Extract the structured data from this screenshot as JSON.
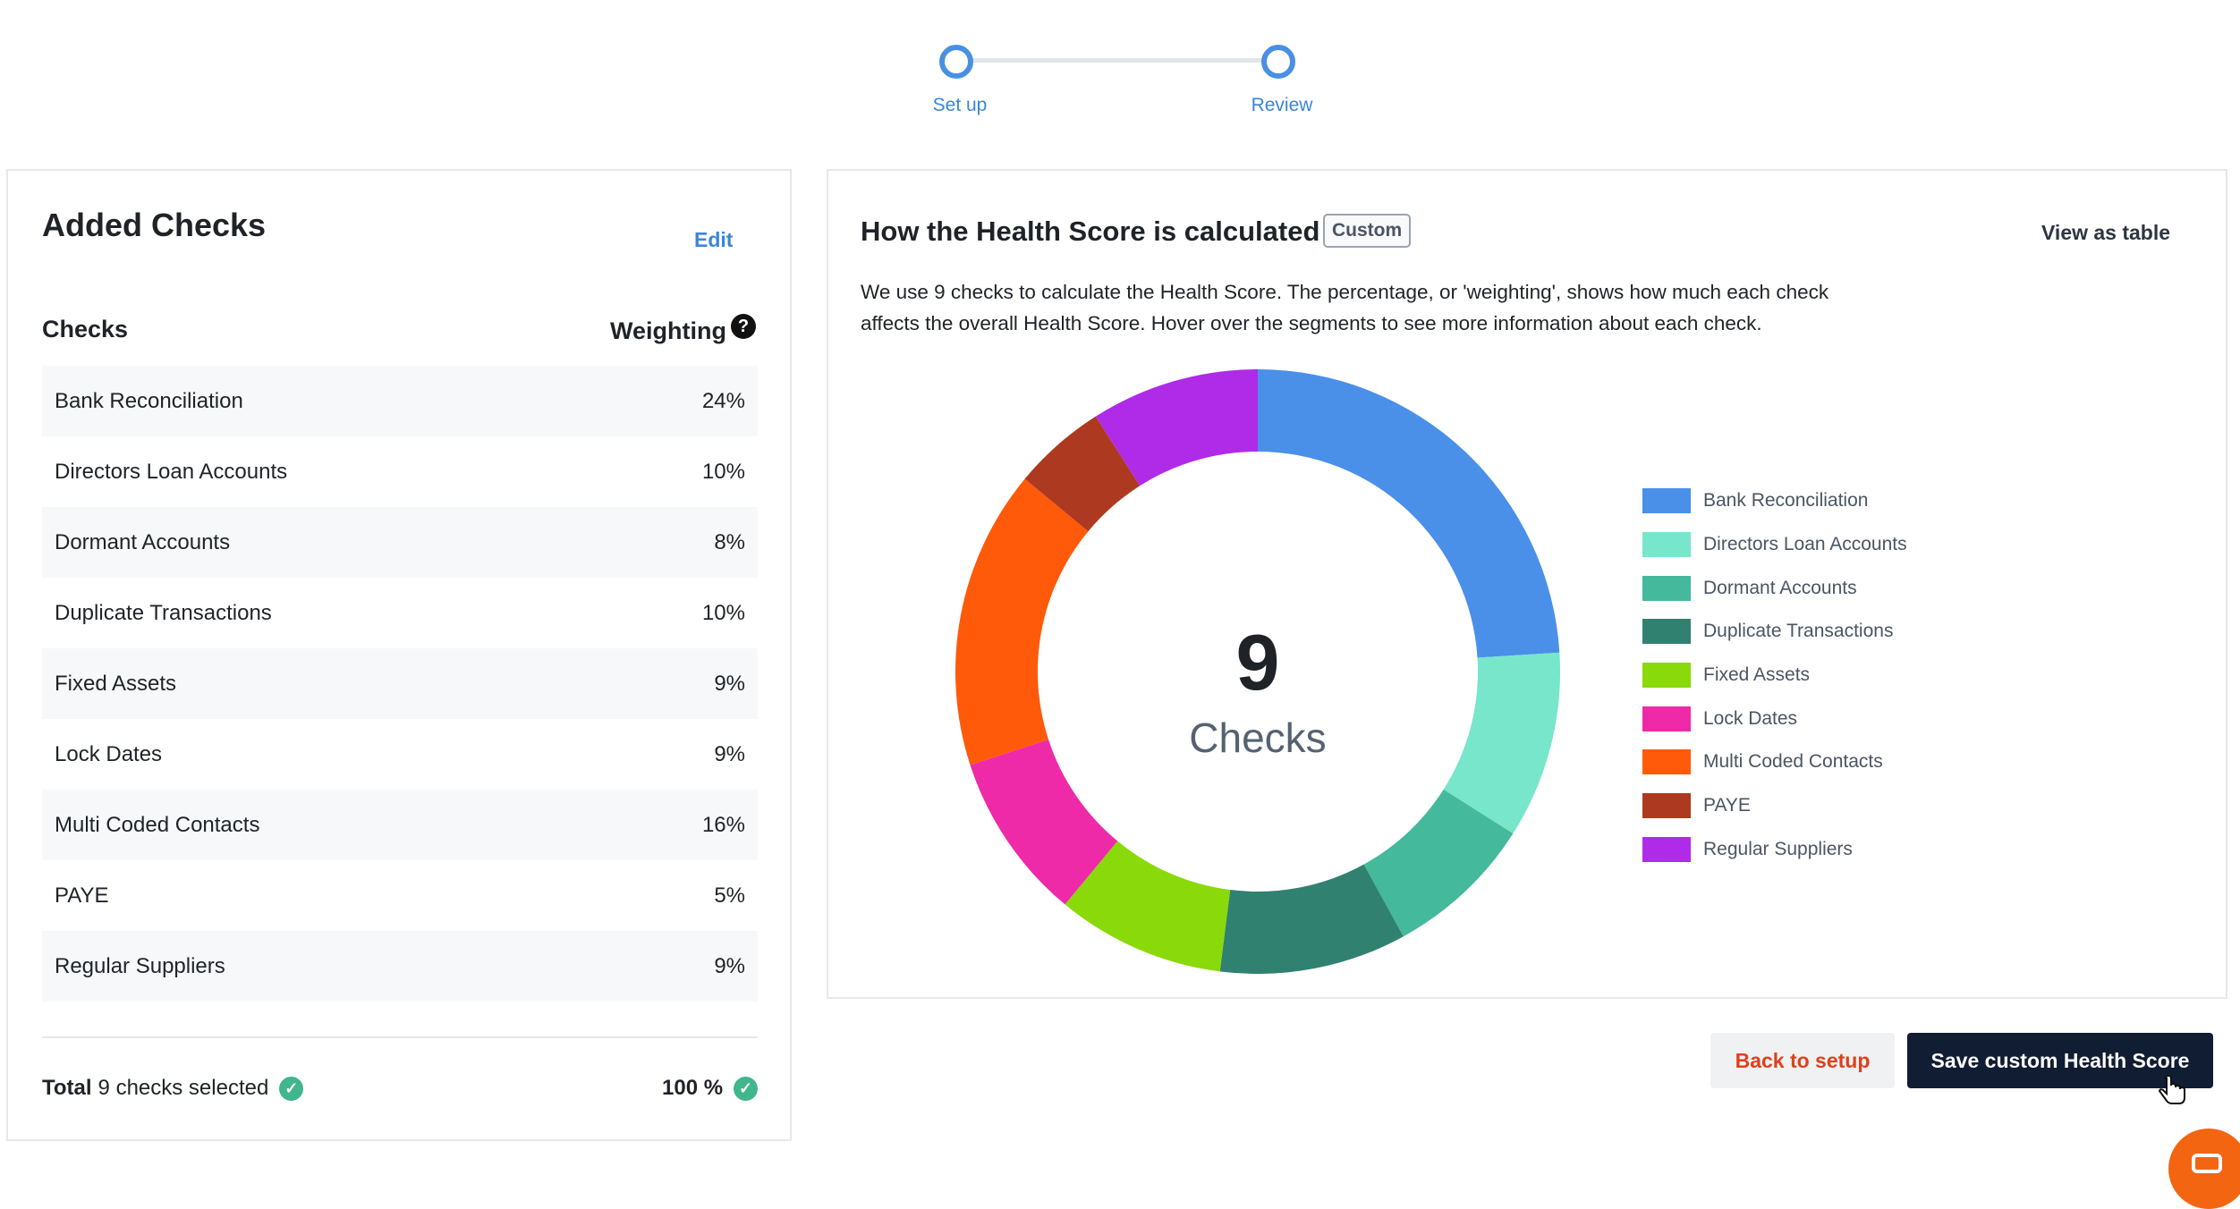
{
  "stepper": {
    "steps": [
      {
        "label": "Set up"
      },
      {
        "label": "Review"
      }
    ]
  },
  "left_panel": {
    "title": "Added Checks",
    "edit_label": "Edit",
    "col_checks": "Checks",
    "col_weighting": "Weighting",
    "help_icon": "question-circle-icon",
    "checks": [
      {
        "name": "Bank Reconciliation",
        "weight": "24%"
      },
      {
        "name": "Directors Loan Accounts",
        "weight": "10%"
      },
      {
        "name": "Dormant Accounts",
        "weight": "8%"
      },
      {
        "name": "Duplicate Transactions",
        "weight": "10%"
      },
      {
        "name": "Fixed Assets",
        "weight": "9%"
      },
      {
        "name": "Lock Dates",
        "weight": "9%"
      },
      {
        "name": "Multi Coded Contacts",
        "weight": "16%"
      },
      {
        "name": "PAYE",
        "weight": "5%"
      },
      {
        "name": "Regular Suppliers",
        "weight": "9%"
      }
    ],
    "total_label": "Total",
    "total_text": "9 checks selected",
    "total_percent": "100 %"
  },
  "right_panel": {
    "title": "How the Health Score is calculated",
    "badge": "Custom",
    "view_table": "View as table",
    "description": "We use 9 checks to calculate the Health Score. The percentage, or 'weighting', shows how much each check affects the overall Health Score. Hover over the segments to see more information about each check.",
    "center_number": "9",
    "center_label": "Checks"
  },
  "chart_data": {
    "type": "pie",
    "donut": true,
    "categories": [
      "Bank Reconciliation",
      "Directors Loan Accounts",
      "Dormant Accounts",
      "Duplicate Transactions",
      "Fixed Assets",
      "Lock Dates",
      "Multi Coded Contacts",
      "PAYE",
      "Regular Suppliers"
    ],
    "values": [
      24,
      10,
      8,
      10,
      9,
      9,
      16,
      5,
      9
    ],
    "colors": [
      "#4a90e8",
      "#78e6cb",
      "#44b99c",
      "#318170",
      "#8ad90a",
      "#ee2aa8",
      "#ff5a0a",
      "#ad3a20",
      "#b02be8"
    ],
    "legend_position": "right"
  },
  "buttons": {
    "back": "Back to setup",
    "save": "Save custom Health Score"
  },
  "colors": {
    "accent": "#4a90e2",
    "primary_button": "#111d33",
    "danger_text": "#e0401b",
    "success": "#3fb68b",
    "chat": "#f46511"
  }
}
